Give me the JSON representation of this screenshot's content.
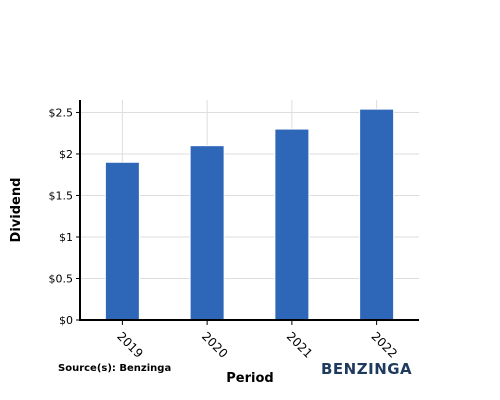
{
  "chart_data": {
    "type": "bar",
    "categories": [
      "2019",
      "2020",
      "2021",
      "2022"
    ],
    "values": [
      1.9,
      2.1,
      2.3,
      2.54
    ],
    "xlabel": "Period",
    "ylabel": "Dividend",
    "ylim": [
      0,
      2.65
    ],
    "yticks": [
      0,
      0.5,
      1,
      1.5,
      2,
      2.5
    ],
    "ytick_labels": [
      "$0",
      "$0.5",
      "$1",
      "$1.5",
      "$2",
      "$2.5"
    ],
    "grid": true,
    "bar_color": "#2e67b8"
  },
  "footer": {
    "source": "Source(s): Benzinga",
    "brand": "BENZINGA"
  }
}
